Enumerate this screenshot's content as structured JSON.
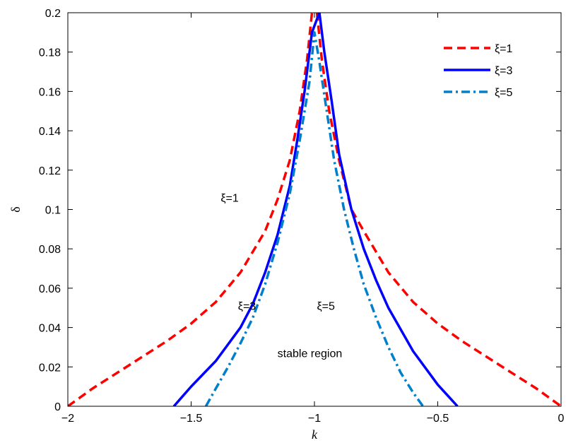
{
  "chart_data": {
    "type": "line",
    "xlabel": "k",
    "ylabel": "δ",
    "xlim": [
      -2,
      0
    ],
    "ylim": [
      0,
      0.2
    ],
    "xticks": [
      -2,
      -1.5,
      -1,
      -0.5,
      0
    ],
    "xtick_labels": [
      "−2",
      "−1.5",
      "−1",
      "−0.5",
      "0"
    ],
    "yticks": [
      0,
      0.02,
      0.04,
      0.06,
      0.08,
      0.1,
      0.12,
      0.14,
      0.16,
      0.18,
      0.2
    ],
    "ytick_labels": [
      "0",
      "0.02",
      "0.04",
      "0.06",
      "0.08",
      "0.1",
      "0.12",
      "0.14",
      "0.16",
      "0.18",
      "0.2"
    ],
    "grid": false,
    "legend_position": "top-right",
    "series": [
      {
        "name": "ξ=1",
        "color": "#ff0000",
        "style": "dashed",
        "x": [
          -2.0,
          -1.9,
          -1.8,
          -1.7,
          -1.6,
          -1.5,
          -1.4,
          -1.3,
          -1.2,
          -1.15,
          -1.1,
          -1.06,
          -1.03,
          -1.01,
          -0.99,
          -0.97,
          -0.94,
          -0.9,
          -0.85,
          -0.8,
          -0.7,
          -0.6,
          -0.5,
          -0.4,
          -0.3,
          -0.2,
          -0.1,
          0.0
        ],
        "y": [
          0.0,
          0.009,
          0.017,
          0.025,
          0.033,
          0.042,
          0.053,
          0.068,
          0.089,
          0.105,
          0.125,
          0.15,
          0.176,
          0.2,
          0.2,
          0.176,
          0.15,
          0.125,
          0.1,
          0.089,
          0.068,
          0.053,
          0.042,
          0.033,
          0.025,
          0.017,
          0.009,
          0.0
        ]
      },
      {
        "name": "ξ=3",
        "color": "#0000ff",
        "style": "solid",
        "x": [
          -1.57,
          -1.5,
          -1.4,
          -1.3,
          -1.25,
          -1.2,
          -1.15,
          -1.1,
          -1.07,
          -1.04,
          -1.01,
          -0.98,
          -0.96,
          -0.93,
          -0.9,
          -0.85,
          -0.8,
          -0.75,
          -0.7,
          -0.6,
          -0.5,
          -0.42
        ],
        "y": [
          0.0,
          0.01,
          0.023,
          0.04,
          0.052,
          0.068,
          0.087,
          0.112,
          0.135,
          0.16,
          0.19,
          0.2,
          0.18,
          0.155,
          0.128,
          0.1,
          0.08,
          0.064,
          0.05,
          0.028,
          0.011,
          0.0
        ]
      },
      {
        "name": "ξ=5",
        "color": "#0080cc",
        "style": "dash-dot",
        "x": [
          -1.44,
          -1.4,
          -1.35,
          -1.3,
          -1.25,
          -1.2,
          -1.15,
          -1.1,
          -1.06,
          -1.02,
          -1.0,
          -0.98,
          -0.95,
          -0.92,
          -0.88,
          -0.84,
          -0.8,
          -0.75,
          -0.7,
          -0.65,
          -0.6,
          -0.56
        ],
        "y": [
          0.0,
          0.009,
          0.02,
          0.032,
          0.045,
          0.062,
          0.083,
          0.108,
          0.135,
          0.165,
          0.19,
          0.175,
          0.15,
          0.125,
          0.1,
          0.08,
          0.062,
          0.045,
          0.03,
          0.017,
          0.007,
          0.0
        ]
      }
    ],
    "annotations": [
      {
        "text": "ξ=1",
        "x": -1.38,
        "y": 0.104
      },
      {
        "text": "ξ=3",
        "x": -1.31,
        "y": 0.049
      },
      {
        "text": "ξ=5",
        "x": -0.99,
        "y": 0.049
      },
      {
        "text": "stable region",
        "x": -1.15,
        "y": 0.025
      }
    ]
  }
}
